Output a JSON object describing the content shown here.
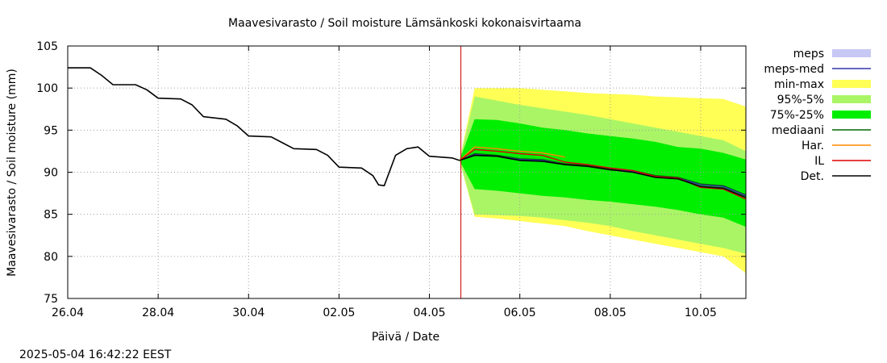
{
  "chart_data": {
    "type": "area",
    "title": "Maavesivarasto / Soil moisture   Lämsänkoski kokonaisvirtaama",
    "xlabel": "Päivä / Date",
    "ylabel": "Maavesivarasto / Soil moisture (mm)",
    "ylim": [
      75,
      105
    ],
    "yticks": [
      75,
      80,
      85,
      90,
      95,
      100,
      105
    ],
    "xlim": [
      "2025-04-26",
      "2025-05-11"
    ],
    "xticks": [
      {
        "date": "2025-04-26",
        "label": "26.04"
      },
      {
        "date": "2025-04-28",
        "label": "28.04"
      },
      {
        "date": "2025-04-30",
        "label": "30.04"
      },
      {
        "date": "2025-05-02",
        "label": "02.05"
      },
      {
        "date": "2025-05-04",
        "label": "04.05"
      },
      {
        "date": "2025-05-06",
        "label": "06.05"
      },
      {
        "date": "2025-05-08",
        "label": "08.05"
      },
      {
        "date": "2025-05-10",
        "label": "10.05"
      }
    ],
    "grid": true,
    "legend_position": "right",
    "now_marker": {
      "date": "2025-05-04T16:42",
      "color": "#cc0000"
    },
    "legend": [
      {
        "label": "meps",
        "kind": "box",
        "color": "#c8c8f5"
      },
      {
        "label": "meps-med",
        "kind": "line",
        "color": "#3333aa"
      },
      {
        "label": "min-max",
        "kind": "box",
        "color": "#ffff55"
      },
      {
        "label": "95%-5%",
        "kind": "box",
        "color": "#aaf566"
      },
      {
        "label": "75%-25%",
        "kind": "box",
        "color": "#00ee00"
      },
      {
        "label": "mediaani",
        "kind": "line",
        "color": "#006600"
      },
      {
        "label": "Har.",
        "kind": "line",
        "color": "#ff8800"
      },
      {
        "label": "IL",
        "kind": "line",
        "color": "#dd0000"
      },
      {
        "label": "Det.",
        "kind": "line",
        "color": "#000000"
      }
    ],
    "observed": {
      "name": "Det.",
      "color": "#000000",
      "x": [
        "2025-04-26T00:00",
        "2025-04-26T12:00",
        "2025-04-26T18:00",
        "2025-04-27T00:00",
        "2025-04-27T12:00",
        "2025-04-27T18:00",
        "2025-04-28T00:00",
        "2025-04-28T12:00",
        "2025-04-28T18:00",
        "2025-04-29T00:00",
        "2025-04-29T12:00",
        "2025-04-29T18:00",
        "2025-04-30T00:00",
        "2025-04-30T12:00",
        "2025-04-30T18:00",
        "2025-05-01T00:00",
        "2025-05-01T12:00",
        "2025-05-01T18:00",
        "2025-05-02T00:00",
        "2025-05-02T12:00",
        "2025-05-02T18:00",
        "2025-05-02T21:00",
        "2025-05-03T00:00",
        "2025-05-03T06:00",
        "2025-05-03T12:00",
        "2025-05-03T18:00",
        "2025-05-04T00:00",
        "2025-05-04T12:00",
        "2025-05-04T16:00"
      ],
      "values": [
        102.4,
        102.4,
        101.5,
        100.4,
        100.4,
        99.8,
        98.8,
        98.7,
        98.0,
        96.6,
        96.3,
        95.5,
        94.3,
        94.2,
        93.5,
        92.8,
        92.7,
        92.0,
        90.6,
        90.5,
        89.6,
        88.5,
        88.4,
        92.0,
        92.8,
        93.0,
        91.9,
        91.7,
        91.4
      ]
    },
    "forecast_x": [
      "2025-05-04T16:00",
      "2025-05-05T00:00",
      "2025-05-05T12:00",
      "2025-05-06T00:00",
      "2025-05-06T12:00",
      "2025-05-07T00:00",
      "2025-05-07T12:00",
      "2025-05-08T00:00",
      "2025-05-08T12:00",
      "2025-05-09T00:00",
      "2025-05-09T12:00",
      "2025-05-10T00:00",
      "2025-05-10T12:00",
      "2025-05-11T00:00"
    ],
    "bands": [
      {
        "name": "min-max",
        "color": "#ffff55",
        "upper": [
          91.4,
          100.0,
          100.0,
          100.0,
          99.8,
          99.6,
          99.4,
          99.3,
          99.2,
          99.0,
          98.9,
          98.8,
          98.7,
          97.8
        ],
        "lower": [
          91.4,
          84.7,
          84.5,
          84.2,
          83.9,
          83.6,
          83.0,
          82.5,
          82.0,
          81.5,
          81.0,
          80.5,
          80.0,
          78.0
        ]
      },
      {
        "name": "95%-5%",
        "color": "#aaf566",
        "upper": [
          91.4,
          99.0,
          98.5,
          98.0,
          97.6,
          97.2,
          96.8,
          96.3,
          95.8,
          95.3,
          94.8,
          94.3,
          93.8,
          92.5
        ],
        "lower": [
          91.4,
          85.0,
          84.9,
          84.8,
          84.6,
          84.3,
          84.0,
          83.6,
          83.0,
          82.5,
          82.0,
          81.5,
          81.0,
          80.3
        ]
      },
      {
        "name": "75%-25%",
        "color": "#00ee00",
        "upper": [
          91.4,
          96.3,
          96.2,
          95.8,
          95.3,
          95.0,
          94.6,
          94.3,
          94.0,
          93.6,
          93.0,
          92.8,
          92.3,
          91.5
        ],
        "lower": [
          91.4,
          88.0,
          87.8,
          87.5,
          87.2,
          87.0,
          86.7,
          86.5,
          86.2,
          85.9,
          85.5,
          85.0,
          84.6,
          83.5
        ]
      }
    ],
    "series": [
      {
        "name": "mediaani",
        "color": "#006600",
        "values": [
          91.4,
          92.2,
          92.0,
          91.6,
          91.5,
          91.0,
          90.8,
          90.4,
          90.2,
          89.6,
          89.4,
          88.6,
          88.4,
          87.3
        ]
      },
      {
        "name": "meps-med",
        "color": "#3333aa",
        "values": [
          91.4,
          92.1,
          91.9,
          91.5,
          91.4,
          90.9,
          90.7,
          90.3,
          90.1,
          89.5,
          89.3,
          88.5,
          88.3,
          87.2
        ]
      },
      {
        "name": "Har.",
        "color": "#ff8800",
        "values": [
          91.4,
          93.0,
          92.8,
          92.5,
          92.3,
          91.8,
          null,
          null,
          null,
          null,
          null,
          null,
          null,
          null
        ]
      },
      {
        "name": "IL",
        "color": "#dd0000",
        "values": [
          91.4,
          92.7,
          92.5,
          92.2,
          92.0,
          91.2,
          90.9,
          90.5,
          90.2,
          89.5,
          89.3,
          88.2,
          88.0,
          86.8
        ]
      },
      {
        "name": "Det.",
        "color": "#000000",
        "values": [
          91.4,
          92.0,
          91.9,
          91.4,
          91.3,
          90.9,
          90.7,
          90.3,
          90.0,
          89.4,
          89.2,
          88.3,
          88.1,
          87.0
        ]
      }
    ]
  },
  "footer": {
    "timestamp": "2025-05-04 16:42:22 EEST"
  }
}
